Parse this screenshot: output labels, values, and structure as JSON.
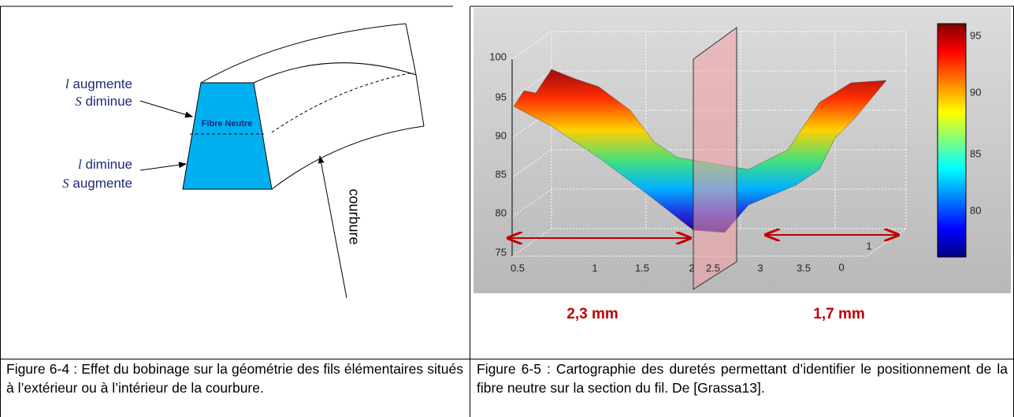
{
  "figures": [
    {
      "diagram": {
        "top_label": {
          "var": "l",
          "text": "augmente",
          "var2": "S",
          "text2": "diminue"
        },
        "neutral": "Fibre Neutre",
        "bottom_label": {
          "var": "l",
          "text": "diminue",
          "var2": "S",
          "text2": "augmente"
        },
        "curvature": "courbure"
      },
      "caption": "Figure 6-4 : Effet du bobinage sur la géométrie des fils élémentaires situés à l’extérieur ou à l’intérieur de la courbure."
    },
    {
      "plot": {
        "y_ticks": [
          "100",
          "95",
          "90",
          "85",
          "80",
          "75"
        ],
        "x_ticks": [
          "0.5",
          "1",
          "1.5",
          "2",
          "2.5",
          "3",
          "3.5"
        ],
        "depth_ticks": [
          "0",
          "1"
        ],
        "colorbar_ticks": [
          "95",
          "90",
          "85",
          "80"
        ],
        "left_width": "2,3 mm",
        "right_width": "1,7 mm"
      },
      "caption": "Figure 6-5 : Cartographie des duretés permettant d’identifier le positionnement de la fibre neutre sur la section du fil. De [Grassa13]."
    }
  ]
}
